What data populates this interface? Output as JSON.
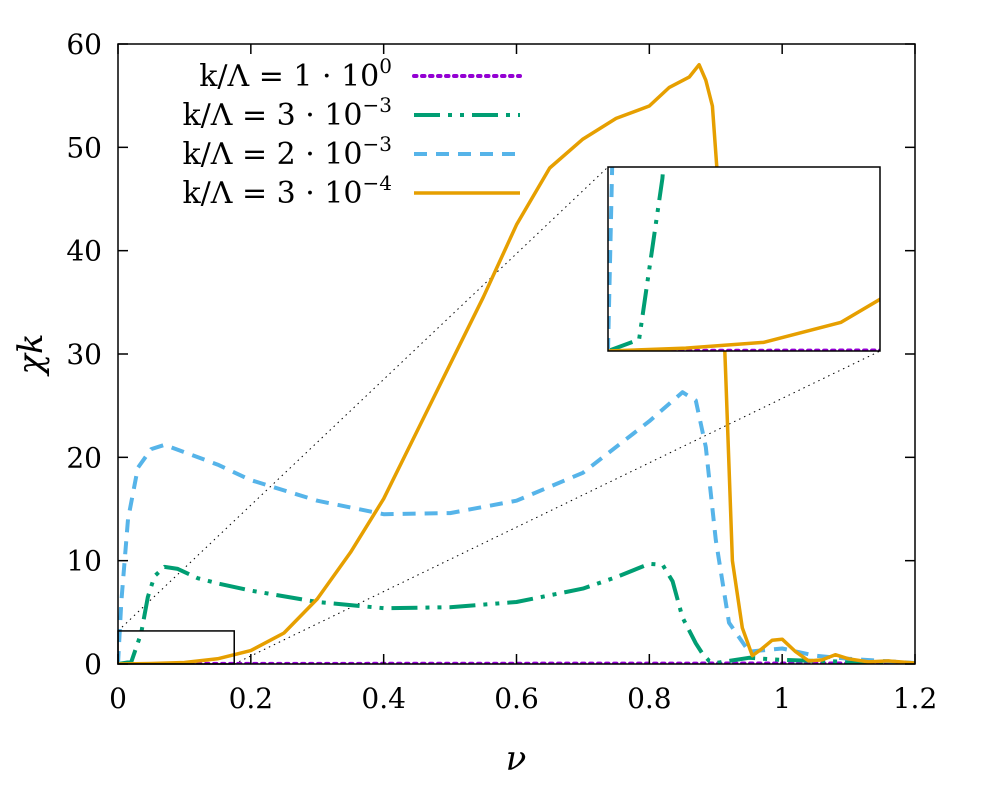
{
  "chart_data": {
    "type": "line",
    "title": "",
    "xlabel": "ν",
    "ylabel": "χk",
    "xlim": [
      0,
      1.2
    ],
    "ylim": [
      0,
      60
    ],
    "xticks": [
      {
        "value": 0,
        "label": "0"
      },
      {
        "value": 0.2,
        "label": "0.2"
      },
      {
        "value": 0.4,
        "label": "0.4"
      },
      {
        "value": 0.6,
        "label": "0.6"
      },
      {
        "value": 0.8,
        "label": "0.8"
      },
      {
        "value": 1.0,
        "label": "1"
      },
      {
        "value": 1.2,
        "label": "1.2"
      }
    ],
    "yticks": [
      {
        "value": 0,
        "label": "0"
      },
      {
        "value": 10,
        "label": "10"
      },
      {
        "value": 20,
        "label": "20"
      },
      {
        "value": 30,
        "label": "30"
      },
      {
        "value": 40,
        "label": "40"
      },
      {
        "value": 50,
        "label": "50"
      },
      {
        "value": 60,
        "label": "60"
      }
    ],
    "grid": false,
    "legend_position": "top-left",
    "series": [
      {
        "name": "k/Λ = 1 · 10^0",
        "label_base": "k/Λ = 1 · 10",
        "label_exp": "0",
        "color": "#9400d3",
        "dash": "dotted",
        "x": [
          0,
          0.2,
          0.4,
          0.6,
          0.8,
          1.0,
          1.2
        ],
        "y": [
          0,
          0.01,
          0.02,
          0.03,
          0.04,
          0.05,
          0.06
        ]
      },
      {
        "name": "k/Λ = 3 · 10^-3",
        "label_base": "k/Λ = 3 · 10",
        "label_exp": "−3",
        "color": "#009e73",
        "dash": "dashdotdot",
        "x": [
          0,
          0.02,
          0.035,
          0.045,
          0.055,
          0.07,
          0.09,
          0.12,
          0.15,
          0.2,
          0.3,
          0.4,
          0.5,
          0.6,
          0.7,
          0.75,
          0.8,
          0.82,
          0.835,
          0.85,
          0.87,
          0.88,
          0.89,
          0.9,
          0.95,
          1.0,
          1.05,
          1.1,
          1.15,
          1.2
        ],
        "y": [
          0,
          0.2,
          3,
          6.5,
          8.5,
          9.4,
          9.2,
          8.3,
          7.8,
          7.1,
          6.0,
          5.4,
          5.5,
          6.0,
          7.3,
          8.4,
          9.7,
          9.6,
          8.0,
          4.5,
          2.0,
          1.0,
          0.3,
          0.1,
          0.6,
          0.4,
          0.3,
          0.2,
          0.1,
          0.05
        ]
      },
      {
        "name": "k/Λ = 2 · 10^-3",
        "label_base": "k/Λ = 2 · 10",
        "label_exp": "−3",
        "color": "#56b4e9",
        "dash": "dashed",
        "x": [
          0,
          0.005,
          0.015,
          0.03,
          0.05,
          0.07,
          0.1,
          0.15,
          0.2,
          0.3,
          0.4,
          0.5,
          0.6,
          0.7,
          0.8,
          0.85,
          0.87,
          0.885,
          0.9,
          0.92,
          0.95,
          1.0,
          1.05,
          1.1,
          1.15,
          1.2
        ],
        "y": [
          0,
          6,
          14,
          19,
          20.8,
          21.2,
          20.5,
          19.3,
          17.8,
          15.8,
          14.5,
          14.6,
          15.8,
          18.5,
          23.5,
          26.3,
          25.5,
          21,
          12,
          4,
          1.2,
          1.5,
          0.8,
          0.5,
          0.3,
          0.1
        ]
      },
      {
        "name": "k/Λ = 3 · 10^-4",
        "label_base": "k/Λ = 3 · 10",
        "label_exp": "−4",
        "color": "#e69f00",
        "dash": "solid",
        "x": [
          0,
          0.05,
          0.1,
          0.15,
          0.2,
          0.25,
          0.3,
          0.35,
          0.4,
          0.45,
          0.5,
          0.55,
          0.6,
          0.65,
          0.7,
          0.75,
          0.8,
          0.83,
          0.86,
          0.875,
          0.885,
          0.895,
          0.905,
          0.915,
          0.925,
          0.94,
          0.955,
          0.97,
          0.985,
          1.0,
          1.02,
          1.04,
          1.06,
          1.08,
          1.1,
          1.13,
          1.16,
          1.2
        ],
        "y": [
          0,
          0.05,
          0.15,
          0.5,
          1.3,
          3.0,
          6.3,
          10.8,
          16.0,
          22.5,
          29.0,
          35.5,
          42.5,
          48.0,
          50.8,
          52.8,
          54.0,
          55.8,
          56.8,
          58.0,
          56.5,
          54.0,
          45.0,
          28.0,
          10.0,
          3.5,
          0.8,
          1.5,
          2.3,
          2.4,
          1.2,
          0.3,
          0.4,
          0.9,
          0.5,
          0.2,
          0.3,
          0.1
        ]
      }
    ],
    "inset": {
      "zoom_region": {
        "xlim": [
          0,
          0.175
        ],
        "ylim": [
          0,
          3.2
        ]
      },
      "placement": "upper-right"
    }
  }
}
